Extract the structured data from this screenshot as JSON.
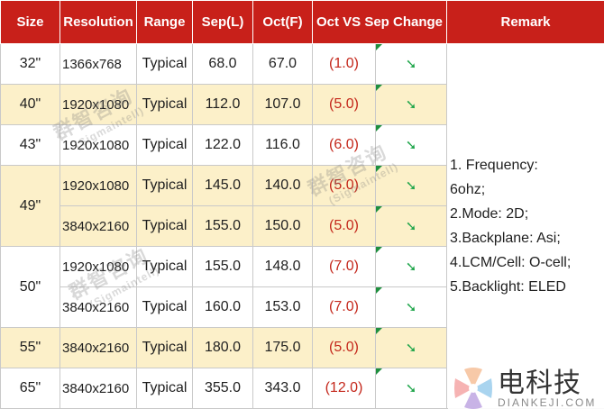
{
  "headers": [
    "Size",
    "Resolution",
    "Range",
    "Sep(L)",
    "Oct(F)",
    "Oct VS Sep Change",
    "Remark"
  ],
  "sizes": [
    "32\"",
    "40\"",
    "43\"",
    "49\"",
    "50\"",
    "55\"",
    "65\""
  ],
  "rows": [
    {
      "resolution": "1366x768",
      "range": "Typical",
      "sep": "68.0",
      "oct": "67.0",
      "change": "(1.0)"
    },
    {
      "resolution": "1920x1080",
      "range": "Typical",
      "sep": "112.0",
      "oct": "107.0",
      "change": "(5.0)"
    },
    {
      "resolution": "1920x1080",
      "range": "Typical",
      "sep": "122.0",
      "oct": "116.0",
      "change": "(6.0)"
    },
    {
      "resolution": "1920x1080",
      "range": "Typical",
      "sep": "145.0",
      "oct": "140.0",
      "change": "(5.0)"
    },
    {
      "resolution": "3840x2160",
      "range": "Typical",
      "sep": "155.0",
      "oct": "150.0",
      "change": "(5.0)"
    },
    {
      "resolution": "1920x1080",
      "range": "Typical",
      "sep": "155.0",
      "oct": "148.0",
      "change": "(7.0)"
    },
    {
      "resolution": "3840x2160",
      "range": "Typical",
      "sep": "160.0",
      "oct": "153.0",
      "change": "(7.0)"
    },
    {
      "resolution": "3840x2160",
      "range": "Typical",
      "sep": "180.0",
      "oct": "175.0",
      "change": "(5.0)"
    },
    {
      "resolution": "3840x2160",
      "range": "Typical",
      "sep": "355.0",
      "oct": "343.0",
      "change": "(12.0)"
    }
  ],
  "trend_icon": "down-right-arrow-icon",
  "trend_glyph": "➘",
  "remark_lines": [
    "1. Frequency:",
    "6ohz;",
    "2.Mode: 2D;",
    "3.Backplane: Asi;",
    "4.LCM/Cell: O-cell;",
    "5.Backlight: ELED"
  ],
  "watermark": {
    "cn": "群智咨询",
    "en": "(Sigmaintell)"
  },
  "brand": {
    "name": "电科技",
    "sub": "DIANKEJI.COM"
  },
  "colors": {
    "header_bg": "#c8201a",
    "band_bg": "#fcf0c9",
    "change_text": "#c4271b",
    "arrow": "#1fa54a"
  }
}
